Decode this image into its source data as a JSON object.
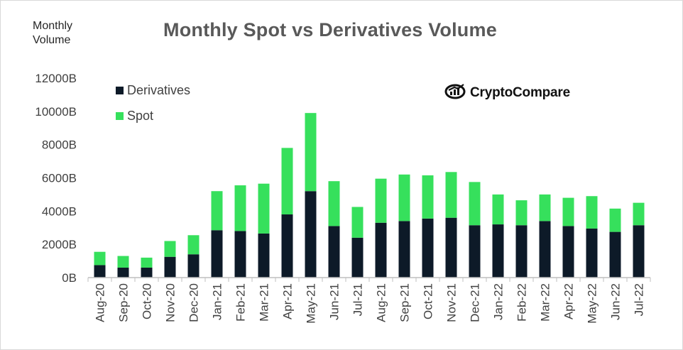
{
  "title": "Monthly Spot vs Derivatives Volume",
  "y_unit_label": [
    "Monthly",
    "Volume"
  ],
  "brand": {
    "name": "CryptoCompare",
    "icon": "cryptocompare-logo-icon"
  },
  "colors": {
    "derivatives": "#0d1a28",
    "spot": "#36e05c",
    "axis": "#bfbfbf"
  },
  "chart_data": {
    "type": "bar",
    "stacked": true,
    "categories": [
      "Aug-20",
      "Sep-20",
      "Oct-20",
      "Nov-20",
      "Dec-20",
      "Jan-21",
      "Feb-21",
      "Mar-21",
      "Apr-21",
      "May-21",
      "Jun-21",
      "Jul-21",
      "Aug-21",
      "Sep-21",
      "Oct-21",
      "Nov-21",
      "Dec-21",
      "Jan-22",
      "Feb-22",
      "Mar-22",
      "Apr-22",
      "May-22",
      "Jun-22",
      "Jul-22"
    ],
    "series": [
      {
        "name": "Derivatives",
        "values": [
          750,
          600,
          600,
          1250,
          1400,
          2850,
          2800,
          2650,
          3800,
          5200,
          3100,
          2400,
          3300,
          3400,
          3550,
          3600,
          3150,
          3200,
          3150,
          3400,
          3100,
          2950,
          2750,
          3150
        ]
      },
      {
        "name": "Spot",
        "values": [
          800,
          700,
          600,
          950,
          1150,
          2350,
          2750,
          3000,
          4000,
          4700,
          2700,
          1850,
          2650,
          2800,
          2600,
          2750,
          2600,
          1800,
          1500,
          1600,
          1700,
          1950,
          1400,
          1350
        ]
      }
    ],
    "ylim": [
      0,
      12000
    ],
    "yticks": [
      0,
      2000,
      4000,
      6000,
      8000,
      10000,
      12000
    ],
    "ytick_labels": [
      "0B",
      "2000B",
      "4000B",
      "6000B",
      "8000B",
      "10000B",
      "12000B"
    ],
    "legend_position": "top-left",
    "grid": false
  }
}
